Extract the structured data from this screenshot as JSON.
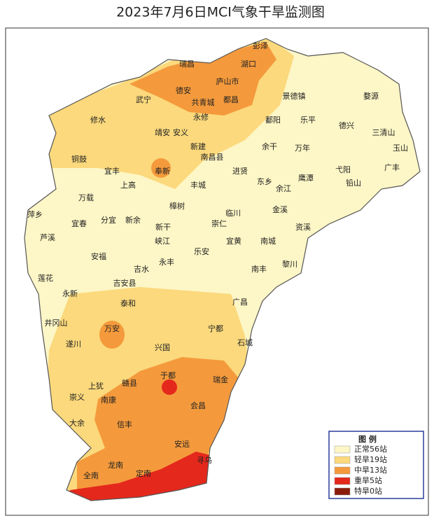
{
  "title": "2023年7月6日MCI气象干旱监测图",
  "legend": {
    "title": "图  例",
    "items": [
      {
        "label": "正常56站",
        "color": "#fdf6c6"
      },
      {
        "label": "轻旱19站",
        "color": "#fbd97c"
      },
      {
        "label": "中旱13站",
        "color": "#f49a3c"
      },
      {
        "label": "重旱5站",
        "color": "#e5281c"
      },
      {
        "label": "特旱0站",
        "color": "#8a1b0b"
      }
    ]
  },
  "places": [
    "彭泽",
    "瑞昌",
    "湖口",
    "庐山市",
    "武宁",
    "德安",
    "共青城",
    "都昌",
    "永修",
    "修水",
    "鄱阳",
    "景德镇",
    "婺源",
    "乐平",
    "德兴",
    "三清山",
    "玉山",
    "靖安",
    "安义",
    "新建",
    "南昌县",
    "万年",
    "余干",
    "铜鼓",
    "宜丰",
    "奉新",
    "进贤",
    "东乡",
    "余江",
    "鹰潭",
    "弋阳",
    "铅山",
    "广丰",
    "上高",
    "丰城",
    "万载",
    "临川",
    "金溪",
    "樟树",
    "萍乡",
    "宜春",
    "分宜",
    "新余",
    "新干",
    "崇仁",
    "资溪",
    "芦溪",
    "峡江",
    "宜黄",
    "南城",
    "安福",
    "吉水",
    "永丰",
    "乐安",
    "黎川",
    "南丰",
    "莲花",
    "吉安县",
    "永新",
    "泰和",
    "广昌",
    "井冈山",
    "万安",
    "宁都",
    "石城",
    "遂川",
    "兴国",
    "于都",
    "瑞金",
    "赣县",
    "上犹",
    "崇义",
    "南康",
    "会昌",
    "大余",
    "信丰",
    "安远",
    "寻乌",
    "龙南",
    "定南",
    "全南"
  ]
}
